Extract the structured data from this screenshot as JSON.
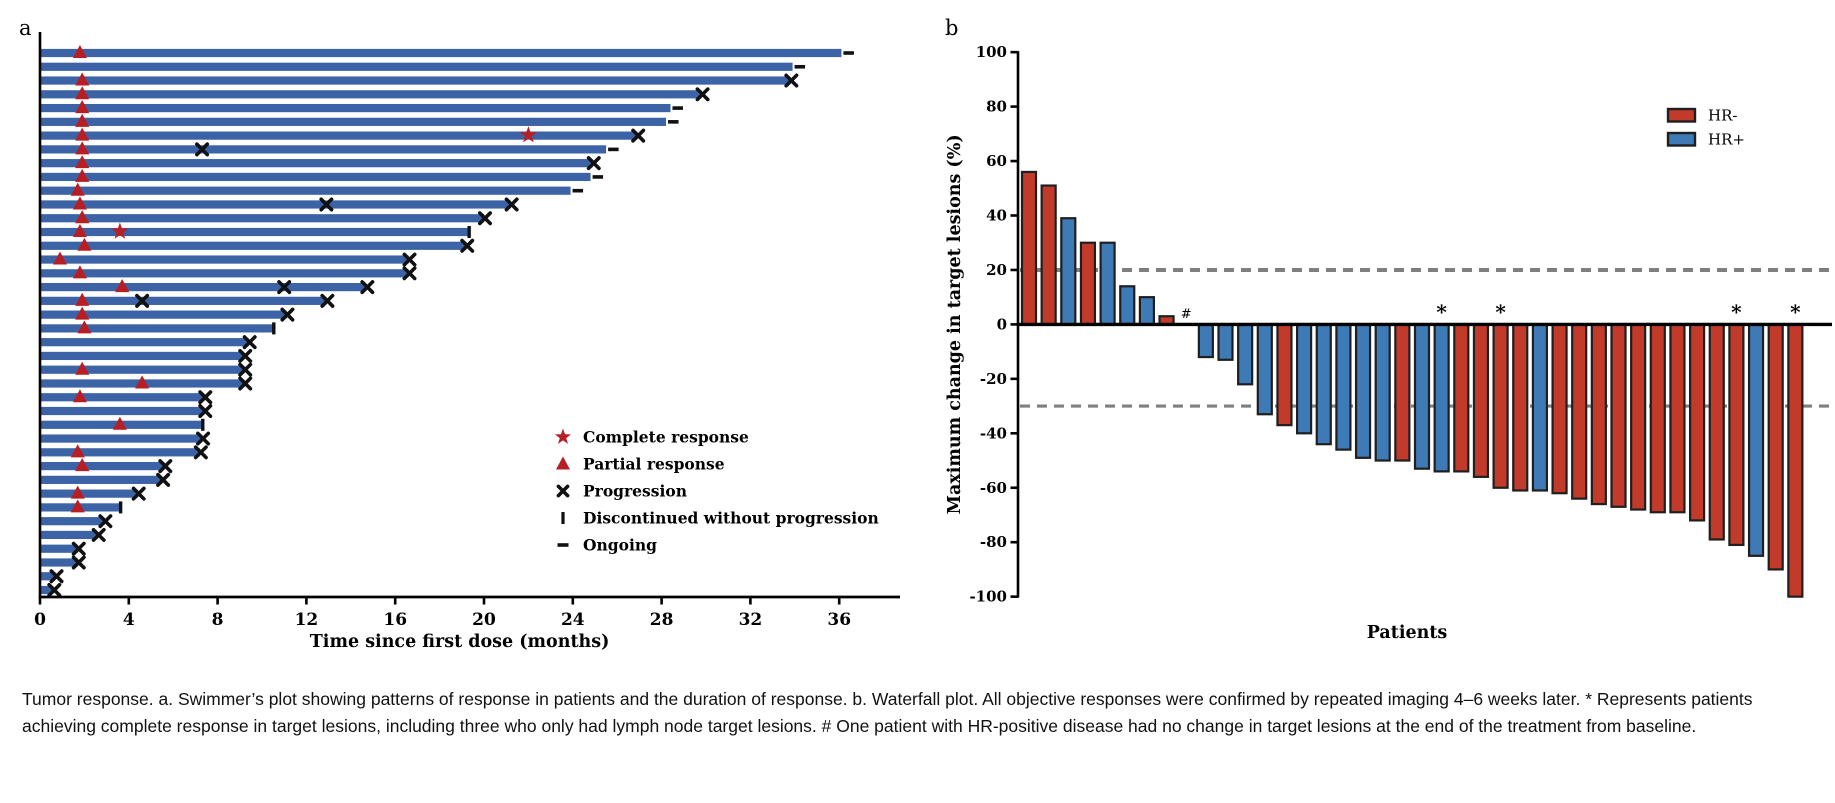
{
  "figure": {
    "panel_a_label": "a",
    "panel_b_label": "b",
    "caption": "Tumor response. a. Swimmer’s plot showing patterns of response in patients and the duration of response. b. Waterfall plot. All objective responses were confirmed by repeated imaging 4–6 weeks later. * Represents patients achieving complete response in target lesions, including three who only had lymph node target lesions. # One patient with HR-positive disease had no change in target lesions at the end of the treatment from baseline."
  },
  "chart_data": [
    {
      "type": "bar",
      "subtype": "swimmer",
      "xlabel": "Time since first dose (months)",
      "x_ticks": [
        0,
        4,
        8,
        12,
        16,
        20,
        24,
        28,
        32,
        36
      ],
      "xlim": [
        0,
        38.2
      ],
      "bar_color": "#3b63a6",
      "response_color": "#b71f24",
      "event_color": "#111111",
      "legend": [
        {
          "symbol": "star",
          "label": "Complete response"
        },
        {
          "symbol": "triangle",
          "label": "Partial response"
        },
        {
          "symbol": "x",
          "label": "Progression"
        },
        {
          "symbol": "bar",
          "label": "Discontinued without progression"
        },
        {
          "symbol": "dash",
          "label": "Ongoing"
        }
      ],
      "patients": [
        {
          "duration": 36.1,
          "end": "ongoing",
          "pr": [
            1.8
          ]
        },
        {
          "duration": 33.9,
          "end": "ongoing"
        },
        {
          "duration": 33.8,
          "end": "x",
          "pr": [
            1.9
          ]
        },
        {
          "duration": 29.8,
          "end": "x",
          "pr": [
            1.9
          ]
        },
        {
          "duration": 28.4,
          "end": "ongoing",
          "pr": [
            1.9
          ]
        },
        {
          "duration": 28.2,
          "end": "ongoing",
          "pr": [
            1.9
          ]
        },
        {
          "duration": 26.9,
          "end": "x",
          "pr": [
            1.9
          ],
          "cr": [
            22.0
          ]
        },
        {
          "duration": 25.5,
          "end": "ongoing",
          "pr": [
            1.9
          ],
          "prog": [
            7.3
          ]
        },
        {
          "duration": 24.9,
          "end": "x",
          "pr": [
            1.9
          ]
        },
        {
          "duration": 24.8,
          "end": "ongoing",
          "pr": [
            1.9
          ]
        },
        {
          "duration": 23.9,
          "end": "ongoing",
          "pr": [
            1.7
          ]
        },
        {
          "duration": 21.2,
          "end": "x",
          "pr": [
            1.8
          ],
          "prog": [
            12.9
          ]
        },
        {
          "duration": 20.0,
          "end": "x",
          "pr": [
            1.9
          ]
        },
        {
          "duration": 19.3,
          "end": "discontinued",
          "pr": [
            1.8
          ],
          "cr": [
            3.6
          ]
        },
        {
          "duration": 19.2,
          "end": "x",
          "pr": [
            2.0
          ]
        },
        {
          "duration": 16.6,
          "end": "x",
          "pr": [
            0.9
          ]
        },
        {
          "duration": 16.6,
          "end": "x",
          "pr": [
            1.8
          ]
        },
        {
          "duration": 14.7,
          "end": "x",
          "pr": [
            3.7
          ],
          "prog": [
            11.0
          ]
        },
        {
          "duration": 12.9,
          "end": "x",
          "pr": [
            1.9
          ],
          "prog": [
            4.6
          ]
        },
        {
          "duration": 11.1,
          "end": "x",
          "pr": [
            1.9
          ]
        },
        {
          "duration": 10.5,
          "end": "discontinued",
          "pr": [
            2.0
          ]
        },
        {
          "duration": 9.4,
          "end": "x"
        },
        {
          "duration": 9.2,
          "end": "x"
        },
        {
          "duration": 9.2,
          "end": "x",
          "pr": [
            1.9
          ]
        },
        {
          "duration": 9.2,
          "end": "x",
          "pr": [
            4.6
          ]
        },
        {
          "duration": 7.4,
          "end": "x",
          "pr": [
            1.8
          ]
        },
        {
          "duration": 7.4,
          "end": "x"
        },
        {
          "duration": 7.3,
          "end": "discontinued",
          "pr": [
            3.6
          ]
        },
        {
          "duration": 7.3,
          "end": "x"
        },
        {
          "duration": 7.2,
          "end": "x",
          "pr": [
            1.7
          ]
        },
        {
          "duration": 5.6,
          "end": "x",
          "pr": [
            1.9
          ]
        },
        {
          "duration": 5.5,
          "end": "x"
        },
        {
          "duration": 4.4,
          "end": "x",
          "pr": [
            1.7
          ]
        },
        {
          "duration": 3.6,
          "end": "discontinued",
          "pr": [
            1.7
          ]
        },
        {
          "duration": 2.9,
          "end": "x"
        },
        {
          "duration": 2.6,
          "end": "x"
        },
        {
          "duration": 1.7,
          "end": "x"
        },
        {
          "duration": 1.7,
          "end": "x"
        },
        {
          "duration": 0.7,
          "end": "x"
        },
        {
          "duration": 0.6,
          "end": "x"
        }
      ]
    },
    {
      "type": "bar",
      "subtype": "waterfall",
      "ylabel": "Maximum change in target lesions (%)",
      "xlabel": "Patients",
      "ylim": [
        -100,
        100
      ],
      "y_ticks": [
        100,
        80,
        60,
        40,
        20,
        0,
        -20,
        -40,
        -60,
        -80,
        -100
      ],
      "reference_lines": [
        20,
        -30
      ],
      "reference_line_color": "#7f7f7f",
      "legend": [
        {
          "label": "HR-",
          "color": "#c23b2a"
        },
        {
          "label": "HR+",
          "color": "#3e7ab5"
        }
      ],
      "colors": {
        "HR-": "#c23b2a",
        "HR+": "#3e7ab5"
      },
      "patients": [
        {
          "value": 56,
          "hr": "HR-"
        },
        {
          "value": 51,
          "hr": "HR-"
        },
        {
          "value": 39,
          "hr": "HR+"
        },
        {
          "value": 30,
          "hr": "HR-"
        },
        {
          "value": 30,
          "hr": "HR+"
        },
        {
          "value": 14,
          "hr": "HR+"
        },
        {
          "value": 10,
          "hr": "HR+"
        },
        {
          "value": 3,
          "hr": "HR-"
        },
        {
          "value": 0,
          "hr": "HR+",
          "hash": true
        },
        {
          "value": -12,
          "hr": "HR+"
        },
        {
          "value": -13,
          "hr": "HR+"
        },
        {
          "value": -22,
          "hr": "HR+"
        },
        {
          "value": -33,
          "hr": "HR+"
        },
        {
          "value": -37,
          "hr": "HR-"
        },
        {
          "value": -40,
          "hr": "HR+"
        },
        {
          "value": -44,
          "hr": "HR+"
        },
        {
          "value": -46,
          "hr": "HR+"
        },
        {
          "value": -49,
          "hr": "HR+"
        },
        {
          "value": -50,
          "hr": "HR+"
        },
        {
          "value": -50,
          "hr": "HR-"
        },
        {
          "value": -53,
          "hr": "HR+"
        },
        {
          "value": -54,
          "hr": "HR+",
          "star": true
        },
        {
          "value": -54,
          "hr": "HR-"
        },
        {
          "value": -56,
          "hr": "HR-"
        },
        {
          "value": -60,
          "hr": "HR-",
          "star": true
        },
        {
          "value": -61,
          "hr": "HR-"
        },
        {
          "value": -61,
          "hr": "HR+"
        },
        {
          "value": -62,
          "hr": "HR-"
        },
        {
          "value": -64,
          "hr": "HR-"
        },
        {
          "value": -66,
          "hr": "HR-"
        },
        {
          "value": -67,
          "hr": "HR-"
        },
        {
          "value": -68,
          "hr": "HR-"
        },
        {
          "value": -69,
          "hr": "HR-"
        },
        {
          "value": -69,
          "hr": "HR-"
        },
        {
          "value": -72,
          "hr": "HR-"
        },
        {
          "value": -79,
          "hr": "HR-"
        },
        {
          "value": -81,
          "hr": "HR-",
          "star": true
        },
        {
          "value": -85,
          "hr": "HR+"
        },
        {
          "value": -90,
          "hr": "HR-"
        },
        {
          "value": -100,
          "hr": "HR-",
          "star": true
        }
      ]
    }
  ]
}
